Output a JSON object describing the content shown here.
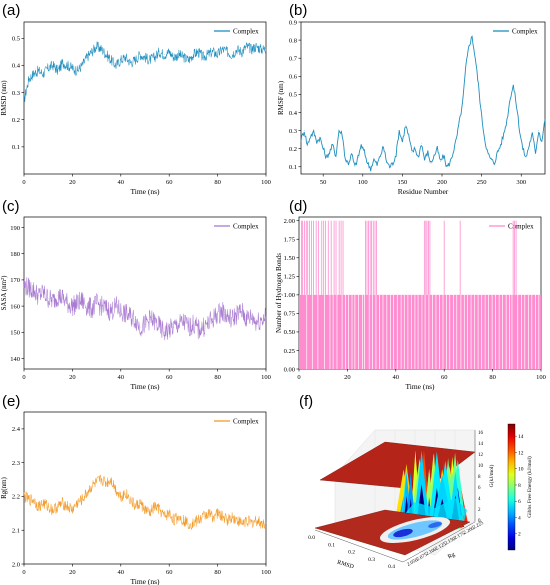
{
  "chart_data": [
    {
      "tag": "(a)",
      "type": "line",
      "xlabel": "Time (ns)",
      "ylabel": "RMSD (nm)",
      "xlim": [
        0,
        100
      ],
      "ylim": [
        0,
        0.56
      ],
      "xticks": [
        "0",
        "20",
        "40",
        "60",
        "80",
        "100"
      ],
      "yticks": [
        "0.1",
        "0.2",
        "0.3",
        "0.4",
        "0.5"
      ],
      "series": [
        {
          "name": "Complex",
          "color": "#1f8fbf",
          "x": [
            0,
            2,
            4,
            6,
            8,
            10,
            12,
            14,
            16,
            18,
            20,
            22,
            24,
            26,
            28,
            30,
            32,
            34,
            36,
            38,
            40,
            42,
            44,
            46,
            48,
            50,
            52,
            54,
            56,
            58,
            60,
            62,
            64,
            66,
            68,
            70,
            72,
            74,
            76,
            78,
            80,
            82,
            84,
            86,
            88,
            90,
            92,
            94,
            96,
            98,
            100
          ],
          "values": [
            0.27,
            0.35,
            0.37,
            0.38,
            0.37,
            0.39,
            0.4,
            0.38,
            0.41,
            0.4,
            0.39,
            0.38,
            0.4,
            0.43,
            0.45,
            0.47,
            0.46,
            0.44,
            0.42,
            0.4,
            0.42,
            0.43,
            0.41,
            0.42,
            0.44,
            0.43,
            0.42,
            0.43,
            0.45,
            0.44,
            0.45,
            0.43,
            0.44,
            0.43,
            0.42,
            0.44,
            0.45,
            0.43,
            0.44,
            0.45,
            0.44,
            0.46,
            0.45,
            0.44,
            0.46,
            0.45,
            0.47,
            0.46,
            0.47,
            0.46,
            0.46
          ]
        }
      ],
      "legend": "top-right"
    },
    {
      "tag": "(b)",
      "type": "line",
      "xlabel": "Residue Number",
      "ylabel": "RMSF (nm)",
      "xlim": [
        22,
        330
      ],
      "ylim": [
        0.06,
        0.9
      ],
      "xticks": [
        "50",
        "100",
        "150",
        "200",
        "250",
        "300"
      ],
      "yticks": [
        "0.1",
        "0.2",
        "0.3",
        "0.4",
        "0.5",
        "0.6",
        "0.7",
        "0.8",
        "0.9"
      ],
      "series": [
        {
          "name": "Complex",
          "color": "#1f8fbf",
          "x": [
            22,
            26,
            30,
            34,
            38,
            42,
            46,
            50,
            54,
            58,
            62,
            66,
            70,
            74,
            78,
            82,
            86,
            90,
            94,
            98,
            102,
            106,
            110,
            114,
            118,
            122,
            126,
            130,
            134,
            138,
            142,
            146,
            150,
            154,
            158,
            162,
            166,
            170,
            174,
            178,
            182,
            186,
            190,
            194,
            198,
            202,
            206,
            210,
            214,
            218,
            222,
            226,
            230,
            234,
            238,
            242,
            246,
            250,
            254,
            258,
            262,
            266,
            270,
            274,
            278,
            282,
            286,
            290,
            294,
            298,
            302,
            306,
            310,
            314,
            318,
            322,
            326,
            330
          ],
          "values": [
            0.25,
            0.3,
            0.22,
            0.27,
            0.29,
            0.24,
            0.26,
            0.2,
            0.15,
            0.18,
            0.22,
            0.16,
            0.3,
            0.28,
            0.14,
            0.12,
            0.17,
            0.1,
            0.15,
            0.22,
            0.18,
            0.12,
            0.09,
            0.14,
            0.11,
            0.16,
            0.21,
            0.13,
            0.1,
            0.12,
            0.17,
            0.3,
            0.24,
            0.33,
            0.27,
            0.18,
            0.2,
            0.15,
            0.23,
            0.14,
            0.18,
            0.12,
            0.16,
            0.2,
            0.13,
            0.16,
            0.1,
            0.12,
            0.18,
            0.25,
            0.35,
            0.45,
            0.65,
            0.77,
            0.82,
            0.7,
            0.55,
            0.38,
            0.25,
            0.17,
            0.14,
            0.12,
            0.18,
            0.22,
            0.28,
            0.36,
            0.48,
            0.55,
            0.44,
            0.3,
            0.2,
            0.15,
            0.22,
            0.28,
            0.18,
            0.3,
            0.24,
            0.36
          ]
        }
      ],
      "legend": "top-right"
    },
    {
      "tag": "(c)",
      "type": "line",
      "xlabel": "Time (ns)",
      "ylabel": "SASA (nm²)",
      "xlim": [
        0,
        100
      ],
      "ylim": [
        136,
        194
      ],
      "xticks": [
        "0",
        "20",
        "40",
        "60",
        "80",
        "100"
      ],
      "yticks": [
        "140",
        "150",
        "160",
        "170",
        "180",
        "190"
      ],
      "series": [
        {
          "name": "Complex",
          "color": "#a97bd1",
          "x": [
            0,
            2,
            4,
            6,
            8,
            10,
            12,
            14,
            16,
            18,
            20,
            22,
            24,
            26,
            28,
            30,
            32,
            34,
            36,
            38,
            40,
            42,
            44,
            46,
            48,
            50,
            52,
            54,
            56,
            58,
            60,
            62,
            64,
            66,
            68,
            70,
            72,
            74,
            76,
            78,
            80,
            82,
            84,
            86,
            88,
            90,
            92,
            94,
            96,
            98,
            100
          ],
          "values": [
            168,
            167,
            166,
            164,
            165,
            163,
            162,
            164,
            163,
            161,
            160,
            161,
            162,
            160,
            159,
            161,
            160,
            159,
            158,
            160,
            158,
            157,
            156,
            155,
            152,
            153,
            155,
            154,
            152,
            150,
            151,
            152,
            153,
            154,
            152,
            153,
            151,
            152,
            153,
            155,
            157,
            158,
            156,
            155,
            157,
            158,
            155,
            156,
            154,
            155,
            156
          ]
        }
      ],
      "legend": "top-right"
    },
    {
      "tag": "(d)",
      "type": "bar",
      "xlabel": "Time (ns)",
      "ylabel": "Number of Hydrogen Bonds",
      "xlim": [
        0,
        100
      ],
      "ylim": [
        0,
        2.05
      ],
      "xticks": [
        "0",
        "20",
        "40",
        "60",
        "80",
        "100"
      ],
      "yticks": [
        "0.00",
        "0.25",
        "0.50",
        "0.75",
        "1.00",
        "1.25",
        "1.50",
        "1.75",
        "2.00"
      ],
      "series": [
        {
          "name": "Complex",
          "color": "#ff8ccf",
          "baseline_value": 1,
          "spikes_to_2": [
            1,
            1.5,
            2.3,
            3,
            3.6,
            4.4,
            5.2,
            6,
            7.1,
            8,
            9.4,
            10.2,
            11,
            12.1,
            13.3,
            14.5,
            15.3,
            16.6,
            17.4,
            18.2,
            27.5,
            28.1,
            28.7,
            29.4,
            30,
            30.7,
            31.4,
            32,
            51.8,
            52.4,
            52.9,
            53.5,
            54.1,
            60,
            66.6,
            88.5,
            89.1,
            89.7
          ],
          "gaps_to_0": [
            3.2,
            5.5,
            7.8,
            10.5,
            12.8,
            14.1,
            15.7,
            17.8,
            19.2,
            20.5,
            21.9,
            23.1,
            24.6,
            26.2,
            27.1,
            29,
            30.3,
            31.8,
            33.2,
            34.7,
            36.3,
            37.8,
            39.1,
            40.6,
            42.2,
            43.5,
            45,
            46.4,
            47.9,
            49.2,
            50.8,
            52.1,
            53.7,
            55.2,
            56.6,
            58,
            59.5,
            61,
            62.3,
            63.8,
            65.2,
            66.9,
            68.3,
            69.7,
            71.1,
            72.6,
            74,
            75.5,
            76.9,
            78.3,
            79.8,
            81.2,
            82.7,
            84.1,
            85.6,
            87,
            88,
            90.4,
            91.9,
            93.3,
            94.8,
            96.2,
            97.7,
            99.1
          ]
        }
      ],
      "legend": "top-right"
    },
    {
      "tag": "(e)",
      "type": "line",
      "xlabel": "Time (ns)",
      "ylabel": "Rg(nm)",
      "xlim": [
        0,
        100
      ],
      "ylim": [
        2.0,
        2.45
      ],
      "xticks": [
        "0",
        "20",
        "40",
        "60",
        "80",
        "100"
      ],
      "yticks": [
        "2.0",
        "2.1",
        "2.2",
        "2.3",
        "2.4"
      ],
      "series": [
        {
          "name": "Complex",
          "color": "#f39c2b",
          "x": [
            0,
            2,
            4,
            6,
            8,
            10,
            12,
            14,
            16,
            18,
            20,
            22,
            24,
            26,
            28,
            30,
            32,
            34,
            36,
            38,
            40,
            42,
            44,
            46,
            48,
            50,
            52,
            54,
            56,
            58,
            60,
            62,
            64,
            66,
            68,
            70,
            72,
            74,
            76,
            78,
            80,
            82,
            84,
            86,
            88,
            90,
            92,
            94,
            96,
            98,
            100
          ],
          "values": [
            2.2,
            2.19,
            2.19,
            2.17,
            2.18,
            2.17,
            2.16,
            2.17,
            2.18,
            2.17,
            2.16,
            2.18,
            2.19,
            2.21,
            2.23,
            2.24,
            2.25,
            2.24,
            2.25,
            2.22,
            2.2,
            2.21,
            2.19,
            2.17,
            2.18,
            2.16,
            2.15,
            2.17,
            2.16,
            2.14,
            2.15,
            2.13,
            2.14,
            2.13,
            2.12,
            2.12,
            2.13,
            2.14,
            2.15,
            2.14,
            2.15,
            2.14,
            2.13,
            2.14,
            2.13,
            2.12,
            2.13,
            2.12,
            2.13,
            2.12,
            2.12
          ]
        }
      ],
      "legend": "top-right"
    },
    {
      "tag": "(f)",
      "type": "heatmap",
      "axis_labels": {
        "rmsd": "RMSD",
        "rg": "Rg",
        "z": "G(kJ/mol)"
      },
      "rmsd_ticks": [
        "0.0",
        "0.1",
        "0.2",
        "0.3",
        "0.4"
      ],
      "rg_ticks": [
        "2.050",
        "2.075",
        "2.100",
        "2.125",
        "2.150",
        "2.175",
        "2.200",
        "2.225"
      ],
      "z_ticks": [
        "0",
        "2",
        "4",
        "6",
        "8",
        "10",
        "12",
        "14",
        "16"
      ],
      "colorbar": {
        "label": "Gibbs Free Energy (kJ/mol)",
        "ticks": [
          "2",
          "4",
          "6",
          "8",
          "10",
          "12",
          "14"
        ],
        "range": [
          0,
          15.5
        ]
      }
    }
  ]
}
